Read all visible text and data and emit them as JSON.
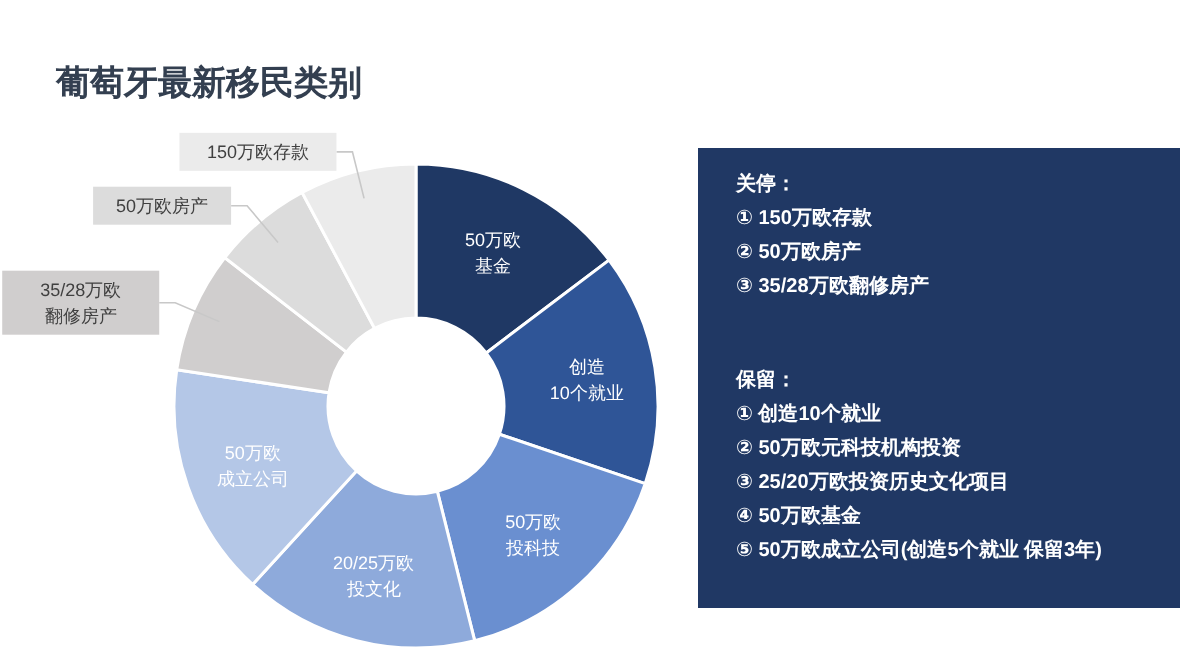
{
  "chart_data": [
    {
      "type": "donut",
      "title": "葡萄牙最新移民类别",
      "categories": [
        "50万欧基金",
        "创造10个就业",
        "50万欧投科技",
        "20/25万欧投文化",
        "50万欧成立公司",
        "35/28万欧翻修房产",
        "50万欧房产",
        "150万欧存款"
      ],
      "values": [
        14.7,
        15.5,
        15.9,
        15.7,
        15.6,
        8.1,
        6.7,
        7.8
      ],
      "colors": [
        "#1f3864",
        "#2f5597",
        "#6a8fd0",
        "#8eaadb",
        "#b4c7e7",
        "#d0cece",
        "#dcdcdc",
        "#ebebeb"
      ]
    },
    {
      "type": "other",
      "annotations": [
        "关停：",
        "① 150万欧存款",
        "② 50万欧房产",
        "③ 35/28万欧翻修房产",
        "保留：",
        "① 创造10个就业",
        "② 50万欧元科技机构投资",
        "③ 25/20万欧投资历史文化项目",
        "④ 50万欧基金",
        "⑤ 50万欧成立公司(创造5个就业 保留3年)"
      ]
    }
  ]
}
